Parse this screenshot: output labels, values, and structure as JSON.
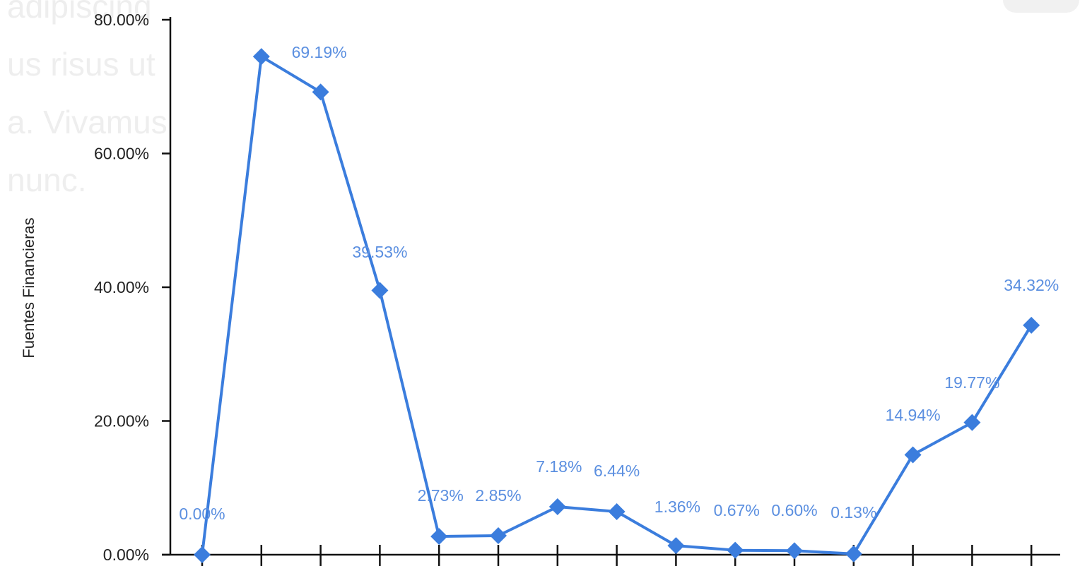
{
  "background_text": [
    "adipiscing",
    "us risus ut",
    "a. Vivamus",
    "nunc."
  ],
  "chart_data": {
    "type": "line",
    "title": "",
    "xlabel": "",
    "ylabel": "Fuentes Financieras",
    "ylim": [
      0,
      80
    ],
    "yticks": [
      0,
      20,
      40,
      60,
      80
    ],
    "ytick_labels": [
      "0.00%",
      "20.00%",
      "40.00%",
      "60.00%",
      "80.00%"
    ],
    "legend": "none",
    "grid": false,
    "marker": "diamond",
    "color": "#3b7ddd",
    "label_color": "#5b8fe0",
    "series": [
      {
        "values": [
          0.0,
          74.5,
          69.19,
          39.53,
          2.73,
          2.85,
          7.18,
          6.44,
          1.36,
          0.67,
          0.6,
          0.13,
          14.94,
          19.77,
          34.32
        ],
        "labels": [
          "0.00%",
          "",
          "69.19%",
          "39.53%",
          "2.73%",
          "2.85%",
          "7.18%",
          "6.44%",
          "1.36%",
          "0.67%",
          "0.60%",
          "0.13%",
          "14.94%",
          "19.77%",
          "34.32%"
        ]
      }
    ]
  }
}
